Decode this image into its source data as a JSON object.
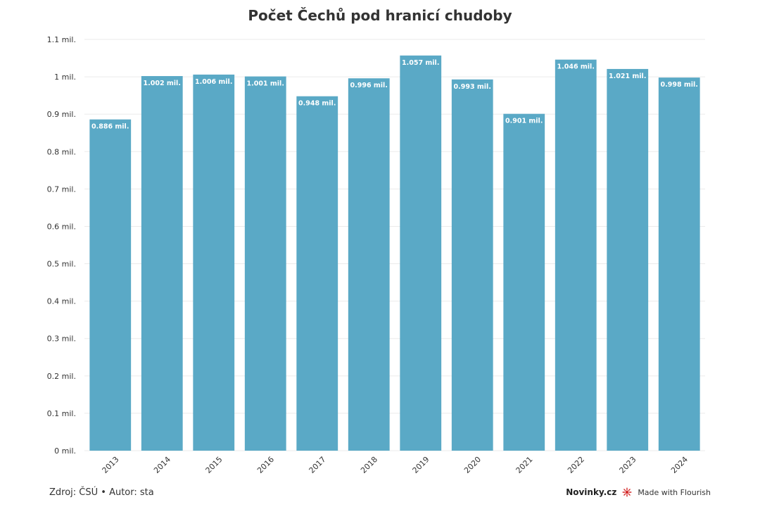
{
  "colors": {
    "bar": "#5aa9c6",
    "bar_label": "#ffffff",
    "grid": "#ebebeb",
    "axis_text": "#333333",
    "flourish_accent": "#d42a2a"
  },
  "chart_data": {
    "type": "bar",
    "title": "Počet Čechů pod hranicí chudoby",
    "xlabel": "",
    "ylabel": "",
    "categories": [
      "2013",
      "2014",
      "2015",
      "2016",
      "2017",
      "2018",
      "2019",
      "2020",
      "2021",
      "2022",
      "2023",
      "2024"
    ],
    "values": [
      0.886,
      1.002,
      1.006,
      1.001,
      0.948,
      0.996,
      1.057,
      0.993,
      0.901,
      1.046,
      1.021,
      0.998
    ],
    "value_labels": [
      "0.886 mil.",
      "1.002 mil.",
      "1.006 mil.",
      "1.001 mil.",
      "0.948 mil.",
      "0.996 mil.",
      "1.057 mil.",
      "0.993 mil.",
      "0.901 mil.",
      "1.046 mil.",
      "1.021 mil.",
      "0.998 mil."
    ],
    "ylim": [
      0,
      1.1
    ],
    "y_ticks": [
      0,
      0.1,
      0.2,
      0.3,
      0.4,
      0.5,
      0.6,
      0.7,
      0.8,
      0.9,
      1.0,
      1.1
    ],
    "y_tick_labels": [
      "0 mil.",
      "0.1 mil.",
      "0.2 mil.",
      "0.3 mil.",
      "0.4 mil.",
      "0.5 mil.",
      "0.6 mil.",
      "0.7 mil.",
      "0.8 mil.",
      "0.9 mil.",
      "1 mil.",
      "1.1 mil."
    ],
    "grid": true,
    "legend": "none"
  },
  "footer": {
    "source": "Zdroj: ČSÚ • Autor: sta",
    "brand": "Novinky.cz",
    "made_with": "Made with Flourish",
    "flourish_icon": "flourish-logo-icon"
  }
}
